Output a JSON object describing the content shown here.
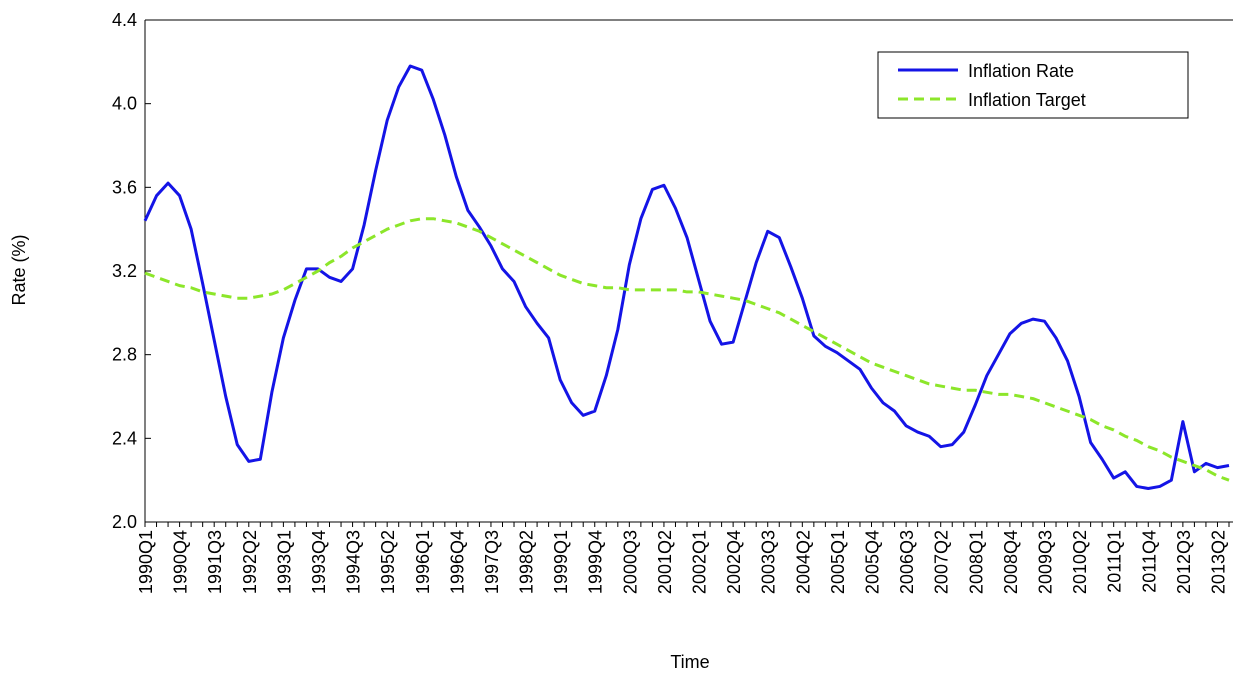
{
  "chart_data": {
    "type": "line",
    "x_label": "Time",
    "y_label": "Rate (%)",
    "categories": [
      "1990Q1",
      null,
      null,
      "1990Q4",
      null,
      null,
      "1991Q3",
      null,
      null,
      "1992Q2",
      null,
      null,
      "1993Q1",
      null,
      null,
      "1993Q4",
      null,
      null,
      "1994Q3",
      null,
      null,
      "1995Q2",
      null,
      null,
      "1996Q1",
      null,
      null,
      "1996Q4",
      null,
      null,
      "1997Q3",
      null,
      null,
      "1998Q2",
      null,
      null,
      "1999Q1",
      null,
      null,
      "1999Q4",
      null,
      null,
      "2000Q3",
      null,
      null,
      "2001Q2",
      null,
      null,
      "2002Q1",
      null,
      null,
      "2002Q4",
      null,
      null,
      "2003Q3",
      null,
      null,
      "2004Q2",
      null,
      null,
      "2005Q1",
      null,
      null,
      "2005Q4",
      null,
      null,
      "2006Q3",
      null,
      null,
      "2007Q2",
      null,
      null,
      "2008Q1",
      null,
      null,
      "2008Q4",
      null,
      null,
      "2009Q3",
      null,
      null,
      "2010Q2",
      null,
      null,
      "2011Q1",
      null,
      null,
      "2011Q4",
      null,
      null,
      "2012Q3",
      null,
      null,
      "2013Q2",
      null
    ],
    "series": [
      {
        "name": "Inflation Rate",
        "color": "#1414e6",
        "style": "solid",
        "values": [
          3.44,
          3.56,
          3.62,
          3.56,
          3.4,
          3.14,
          2.87,
          2.6,
          2.37,
          2.29,
          2.3,
          2.62,
          2.88,
          3.06,
          3.21,
          3.21,
          3.17,
          3.15,
          3.21,
          3.42,
          3.68,
          3.92,
          4.08,
          4.18,
          4.16,
          4.02,
          3.85,
          3.65,
          3.49,
          3.41,
          3.32,
          3.21,
          3.15,
          3.03,
          2.95,
          2.88,
          2.68,
          2.57,
          2.51,
          2.53,
          2.7,
          2.92,
          3.23,
          3.45,
          3.59,
          3.61,
          3.5,
          3.36,
          3.16,
          2.96,
          2.85,
          2.86,
          3.05,
          3.24,
          3.39,
          3.36,
          3.22,
          3.07,
          2.89,
          2.84,
          2.81,
          2.77,
          2.73,
          2.64,
          2.57,
          2.53,
          2.46,
          2.43,
          2.41,
          2.36,
          2.37,
          2.43,
          2.56,
          2.7,
          2.8,
          2.9,
          2.95,
          2.97,
          2.96,
          2.88,
          2.77,
          2.6,
          2.38,
          2.3,
          2.21,
          2.24,
          2.17,
          2.16,
          2.17,
          2.2,
          2.48,
          2.24,
          2.28,
          2.26,
          2.27
        ]
      },
      {
        "name": "Inflation Target",
        "color": "#8ce62a",
        "style": "dashed",
        "values": [
          3.19,
          3.17,
          3.15,
          3.13,
          3.12,
          3.1,
          3.09,
          3.08,
          3.07,
          3.07,
          3.08,
          3.09,
          3.11,
          3.14,
          3.17,
          3.2,
          3.24,
          3.27,
          3.31,
          3.34,
          3.37,
          3.4,
          3.42,
          3.44,
          3.45,
          3.45,
          3.44,
          3.43,
          3.41,
          3.39,
          3.36,
          3.33,
          3.3,
          3.27,
          3.24,
          3.21,
          3.18,
          3.16,
          3.14,
          3.13,
          3.12,
          3.12,
          3.11,
          3.11,
          3.11,
          3.11,
          3.11,
          3.1,
          3.1,
          3.09,
          3.08,
          3.07,
          3.06,
          3.04,
          3.02,
          3.0,
          2.97,
          2.94,
          2.91,
          2.88,
          2.85,
          2.82,
          2.79,
          2.76,
          2.74,
          2.72,
          2.7,
          2.68,
          2.66,
          2.65,
          2.64,
          2.63,
          2.63,
          2.62,
          2.61,
          2.61,
          2.6,
          2.59,
          2.57,
          2.55,
          2.53,
          2.51,
          2.49,
          2.46,
          2.44,
          2.41,
          2.39,
          2.36,
          2.34,
          2.31,
          2.29,
          2.27,
          2.25,
          2.22,
          2.2
        ]
      }
    ],
    "ylim": [
      2.0,
      4.4
    ],
    "yticks": [
      {
        "value": 2.0,
        "label": "2.0"
      },
      {
        "value": 2.4,
        "label": "2.4"
      },
      {
        "value": 2.8,
        "label": "2.8"
      },
      {
        "value": 3.2,
        "label": "3.2"
      },
      {
        "value": 3.6,
        "label": "3.6"
      },
      {
        "value": 4.0,
        "label": "4.0"
      },
      {
        "value": 4.4,
        "label": "4.4"
      }
    ],
    "legend": "upper right"
  }
}
